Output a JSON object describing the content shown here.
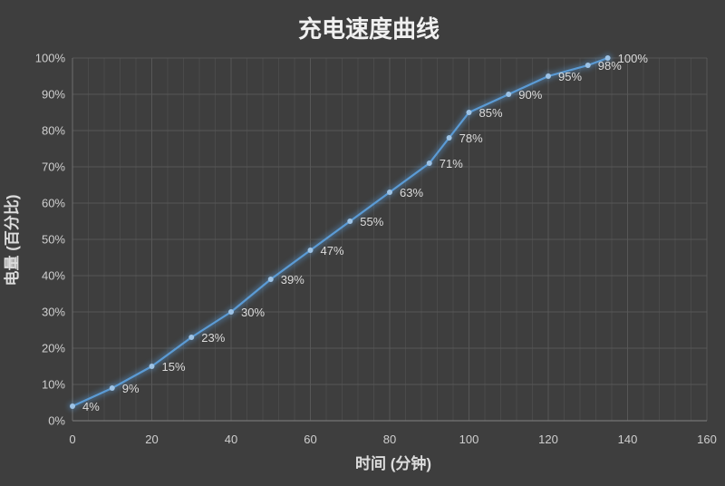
{
  "colors": {
    "background": "#3E3E3E",
    "line": "#5B9BD5",
    "marker": "#9DC3E6",
    "glow": "#5B9BD5",
    "grid_major": "#575757",
    "grid_minor": "#4A4A4A",
    "axis_line": "#6E6E6E",
    "baseline": "#757575",
    "tick_text": "#CFCFCF",
    "label_text": "#DCDCDC",
    "title_text": "#F0F0F0",
    "axis_title_text": "#DCDCDC"
  },
  "chart_data": {
    "type": "line",
    "title": "充电速度曲线",
    "xlabel": "时间 (分钟)",
    "ylabel": "电量 (百分比)",
    "x": [
      0,
      10,
      20,
      30,
      40,
      50,
      60,
      70,
      80,
      90,
      95,
      100,
      110,
      120,
      130,
      135
    ],
    "values": [
      4,
      9,
      15,
      23,
      30,
      39,
      47,
      55,
      63,
      71,
      78,
      85,
      90,
      95,
      98,
      100
    ],
    "point_labels": [
      "4%",
      "9%",
      "15%",
      "23%",
      "30%",
      "39%",
      "47%",
      "55%",
      "63%",
      "71%",
      "78%",
      "85%",
      "90%",
      "95%",
      "98%",
      "100%"
    ],
    "xlim": [
      0,
      160
    ],
    "ylim": [
      0,
      100
    ],
    "x_ticks": [
      {
        "v": 0,
        "label": "0"
      },
      {
        "v": 20,
        "label": "20"
      },
      {
        "v": 40,
        "label": "40"
      },
      {
        "v": 60,
        "label": "60"
      },
      {
        "v": 80,
        "label": "80"
      },
      {
        "v": 100,
        "label": "100"
      },
      {
        "v": 120,
        "label": "120"
      },
      {
        "v": 140,
        "label": "140"
      },
      {
        "v": 160,
        "label": "160"
      }
    ],
    "y_ticks": [
      {
        "v": 0,
        "label": "0%"
      },
      {
        "v": 10,
        "label": "10%"
      },
      {
        "v": 20,
        "label": "20%"
      },
      {
        "v": 30,
        "label": "30%"
      },
      {
        "v": 40,
        "label": "40%"
      },
      {
        "v": 50,
        "label": "50%"
      },
      {
        "v": 60,
        "label": "60%"
      },
      {
        "v": 70,
        "label": "70%"
      },
      {
        "v": 80,
        "label": "80%"
      },
      {
        "v": 90,
        "label": "90%"
      },
      {
        "v": 100,
        "label": "100%"
      }
    ],
    "x_minor_interval": 4,
    "x_major_interval": 20,
    "y_major_interval": 10,
    "grid": "on",
    "legend": "none"
  }
}
